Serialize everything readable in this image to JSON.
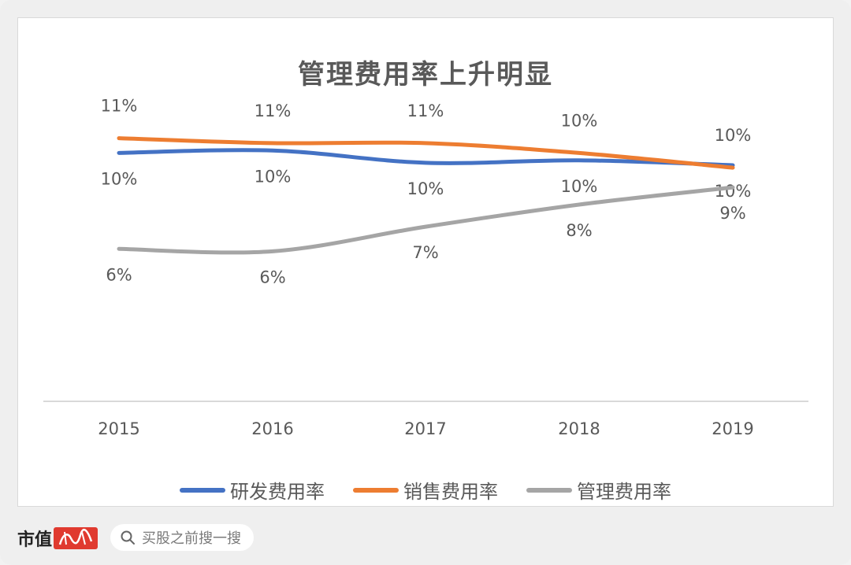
{
  "chart_data": {
    "type": "line",
    "title": "管理费用率上升明显",
    "categories": [
      "2015",
      "2016",
      "2017",
      "2018",
      "2019"
    ],
    "ylim": [
      0,
      0.12
    ],
    "grid": false,
    "legend_position": "bottom",
    "series": [
      {
        "name": "研发费用率",
        "color": "#4472C4",
        "values": [
          0.101,
          0.102,
          0.097,
          0.098,
          0.096
        ],
        "labels": [
          "10%",
          "10%",
          "10%",
          "10%",
          "10%"
        ]
      },
      {
        "name": "销售费用率",
        "color": "#ED7D31",
        "values": [
          0.107,
          0.105,
          0.105,
          0.101,
          0.095
        ],
        "labels": [
          "11%",
          "11%",
          "11%",
          "10%",
          "10%"
        ]
      },
      {
        "name": "管理费用率",
        "color": "#A5A5A5",
        "values": [
          0.062,
          0.061,
          0.071,
          0.08,
          0.087
        ],
        "labels": [
          "6%",
          "6%",
          "7%",
          "8%",
          "9%"
        ]
      }
    ]
  },
  "footer": {
    "brand": "市值",
    "search_placeholder": "买股之前搜一搜",
    "search_icon": "search-icon"
  }
}
